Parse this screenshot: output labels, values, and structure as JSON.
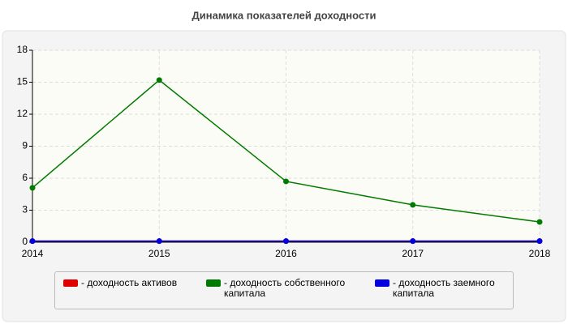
{
  "chart_data": {
    "type": "line",
    "title": "Динамика показателей доходности",
    "categories": [
      "2014",
      "2015",
      "2016",
      "2017",
      "2018"
    ],
    "series": [
      {
        "name": "- доходность активов",
        "color": "#e00000",
        "values": [
          0.1,
          0.1,
          0.1,
          0.1,
          0.1
        ]
      },
      {
        "name": "- доходность собственного капитала",
        "color": "#007a00",
        "values": [
          5.1,
          15.2,
          5.7,
          3.5,
          1.9
        ]
      },
      {
        "name": "- доходность заемного капитала",
        "color": "#0000e0",
        "values": [
          0.1,
          0.1,
          0.1,
          0.1,
          0.1
        ]
      }
    ],
    "ylim": [
      0,
      18
    ],
    "yticks": [
      0,
      3,
      6,
      9,
      12,
      15,
      18
    ],
    "grid": true
  }
}
